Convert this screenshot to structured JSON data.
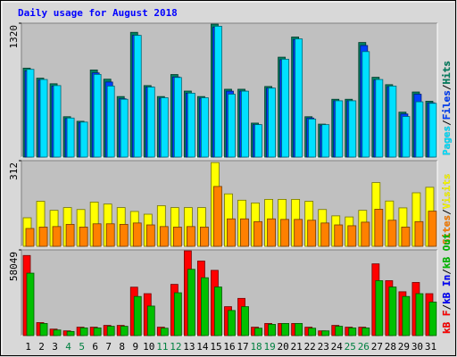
{
  "chart_data": [
    {
      "type": "bar",
      "title": "Daily usage for August 2018",
      "categories": [
        "1",
        "2",
        "3",
        "4",
        "5",
        "6",
        "7",
        "8",
        "9",
        "10",
        "11",
        "12",
        "13",
        "14",
        "15",
        "16",
        "17",
        "18",
        "19",
        "20",
        "21",
        "22",
        "23",
        "24",
        "25",
        "26",
        "27",
        "28",
        "29",
        "30",
        "31"
      ],
      "highlight_indices": [
        3,
        4,
        10,
        11,
        17,
        18,
        24,
        25
      ],
      "highlight_color": "#008040",
      "legend_separator": "/",
      "legend_order": [
        2,
        1,
        0
      ],
      "ylim": [
        0,
        1320
      ],
      "yticks": [
        1320
      ],
      "series": [
        {
          "name": "Hits",
          "color": "#008060",
          "values": [
            877,
            778,
            723,
            398,
            353,
            859,
            768,
            597,
            1230,
            705,
            597,
            814,
            651,
            597,
            1311,
            669,
            669,
            335,
            696,
            985,
            1184,
            398,
            325,
            570,
            570,
            1130,
            787,
            714,
            443,
            642,
            551
          ]
        },
        {
          "name": "Files",
          "color": "#0040ff",
          "values": [
            850,
            760,
            700,
            380,
            340,
            830,
            740,
            575,
            1200,
            690,
            580,
            790,
            630,
            580,
            1280,
            650,
            650,
            320,
            680,
            960,
            1160,
            385,
            310,
            555,
            555,
            1100,
            760,
            695,
            425,
            620,
            535
          ]
        },
        {
          "name": "Pages",
          "color": "#00e0ff",
          "values": [
            865,
            765,
            705,
            385,
            345,
            815,
            700,
            570,
            1200,
            690,
            585,
            785,
            630,
            585,
            1290,
            620,
            650,
            320,
            680,
            965,
            1165,
            375,
            320,
            555,
            555,
            1040,
            765,
            700,
            400,
            545,
            530
          ]
        }
      ]
    },
    {
      "type": "bar",
      "legend_order": [
        1,
        0
      ],
      "ylim": [
        0,
        312
      ],
      "yticks": [
        312
      ],
      "series": [
        {
          "name": "Visits",
          "color": "#ffff00",
          "values": [
            104,
            164,
            131,
            141,
            134,
            161,
            154,
            141,
            127,
            117,
            148,
            141,
            141,
            141,
            305,
            191,
            168,
            158,
            171,
            171,
            171,
            164,
            134,
            111,
            107,
            131,
            232,
            165,
            140,
            195,
            215
          ]
        },
        {
          "name": "Sites",
          "color": "#ff8000",
          "values": [
            65,
            70,
            72,
            80,
            70,
            82,
            82,
            80,
            85,
            78,
            72,
            70,
            72,
            70,
            218,
            100,
            100,
            90,
            100,
            98,
            98,
            95,
            85,
            78,
            75,
            88,
            135,
            95,
            70,
            90,
            128
          ]
        }
      ]
    },
    {
      "type": "bar",
      "legend_order": [
        0,
        1,
        2
      ],
      "ylim": [
        0,
        58049
      ],
      "yticks": [
        58049
      ],
      "series": [
        {
          "name": "kB F",
          "color": "#ff0000",
          "values": [
            54262,
            8800,
            4400,
            3200,
            5700,
            5700,
            6900,
            6900,
            32800,
            28400,
            5700,
            34700,
            57400,
            50500,
            44200,
            19600,
            25200,
            5700,
            8200,
            8200,
            8200,
            5700,
            3200,
            6900,
            5700,
            5700,
            48600,
            37200,
            29700,
            36000,
            28400
          ]
        },
        {
          "name": "kB In",
          "color": "#0000ff",
          "values": [
            0,
            0,
            0,
            0,
            0,
            0,
            0,
            0,
            0,
            0,
            0,
            0,
            0,
            0,
            0,
            0,
            0,
            0,
            0,
            0,
            0,
            0,
            0,
            0,
            0,
            0,
            0,
            0,
            0,
            0,
            0
          ]
        },
        {
          "name": "kB Out",
          "color": "#00c000",
          "values": [
            42300,
            8200,
            3800,
            2800,
            5200,
            5200,
            6300,
            6300,
            26500,
            20000,
            5000,
            29000,
            44900,
            39200,
            32900,
            17000,
            19600,
            5000,
            7600,
            8200,
            8200,
            5000,
            3200,
            6300,
            5200,
            5200,
            37200,
            32900,
            26500,
            28400,
            22700
          ]
        }
      ]
    }
  ]
}
